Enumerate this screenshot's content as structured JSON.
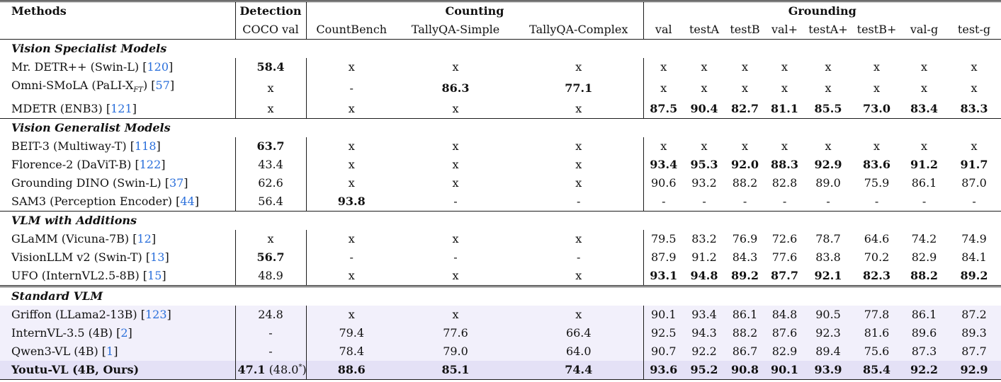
{
  "colors": {
    "citation_link": "#2a6fdb",
    "rule": "#1b1b1b",
    "text": "#111111",
    "shaded_row_bg": "#f2f0fb",
    "highlight_row_bg": "#e4e1f6"
  },
  "table": {
    "header": {
      "methods": "Methods",
      "groups": [
        {
          "label": "Detection",
          "cols": [
            "COCO val"
          ]
        },
        {
          "label": "Counting",
          "cols": [
            "CountBench",
            "TallyQA-Simple",
            "TallyQA-Complex"
          ]
        },
        {
          "label": "Grounding",
          "cols": [
            "val",
            "testA",
            "testB",
            "val+",
            "testA+",
            "testB+",
            "val-g",
            "test-g"
          ]
        }
      ]
    },
    "sections": [
      {
        "title": "Vision Specialist Models",
        "rule": "none",
        "shaded": false,
        "rows": [
          {
            "method": {
              "name": "Mr. DETR++ (Swin-L)",
              "cite": "120"
            },
            "cells": [
              {
                "v": "58.4",
                "b": true
              },
              {
                "v": "x"
              },
              {
                "v": "x"
              },
              {
                "v": "x"
              },
              {
                "v": "x"
              },
              {
                "v": "x"
              },
              {
                "v": "x"
              },
              {
                "v": "x"
              },
              {
                "v": "x"
              },
              {
                "v": "x"
              },
              {
                "v": "x"
              },
              {
                "v": "x"
              }
            ]
          },
          {
            "method": {
              "name": "Omni-SMoLA (PaLI-X",
              "sub": "FT",
              "after": ")",
              "cite": "57"
            },
            "cells": [
              {
                "v": "x"
              },
              {
                "v": "-"
              },
              {
                "v": "86.3",
                "b": true
              },
              {
                "v": "77.1",
                "b": true
              },
              {
                "v": "x"
              },
              {
                "v": "x"
              },
              {
                "v": "x"
              },
              {
                "v": "x"
              },
              {
                "v": "x"
              },
              {
                "v": "x"
              },
              {
                "v": "x"
              },
              {
                "v": "x"
              }
            ]
          },
          {
            "method": {
              "name": "MDETR (ENB3)",
              "cite": "121"
            },
            "cells": [
              {
                "v": "x"
              },
              {
                "v": "x"
              },
              {
                "v": "x"
              },
              {
                "v": "x"
              },
              {
                "v": "87.5",
                "b": true
              },
              {
                "v": "90.4",
                "b": true
              },
              {
                "v": "82.7",
                "b": true
              },
              {
                "v": "81.1",
                "b": true
              },
              {
                "v": "85.5",
                "b": true
              },
              {
                "v": "73.0",
                "b": true
              },
              {
                "v": "83.4",
                "b": true
              },
              {
                "v": "83.3",
                "b": true
              }
            ]
          }
        ]
      },
      {
        "title": "Vision Generalist Models",
        "rule": "single",
        "shaded": false,
        "rows": [
          {
            "method": {
              "name": "BEIT-3 (Multiway-T)",
              "cite": "118"
            },
            "cells": [
              {
                "v": "63.7",
                "b": true
              },
              {
                "v": "x"
              },
              {
                "v": "x"
              },
              {
                "v": "x"
              },
              {
                "v": "x"
              },
              {
                "v": "x"
              },
              {
                "v": "x"
              },
              {
                "v": "x"
              },
              {
                "v": "x"
              },
              {
                "v": "x"
              },
              {
                "v": "x"
              },
              {
                "v": "x"
              }
            ]
          },
          {
            "method": {
              "name": "Florence-2 (DaViT-B)",
              "cite": "122"
            },
            "cells": [
              {
                "v": "43.4"
              },
              {
                "v": "x"
              },
              {
                "v": "x"
              },
              {
                "v": "x"
              },
              {
                "v": "93.4",
                "b": true
              },
              {
                "v": "95.3",
                "b": true
              },
              {
                "v": "92.0",
                "b": true
              },
              {
                "v": "88.3",
                "b": true
              },
              {
                "v": "92.9",
                "b": true
              },
              {
                "v": "83.6",
                "b": true
              },
              {
                "v": "91.2",
                "b": true
              },
              {
                "v": "91.7",
                "b": true
              }
            ]
          },
          {
            "method": {
              "name": "Grounding DINO (Swin-L)",
              "cite": "37"
            },
            "cells": [
              {
                "v": "62.6"
              },
              {
                "v": "x"
              },
              {
                "v": "x"
              },
              {
                "v": "x"
              },
              {
                "v": "90.6"
              },
              {
                "v": "93.2"
              },
              {
                "v": "88.2"
              },
              {
                "v": "82.8"
              },
              {
                "v": "89.0"
              },
              {
                "v": "75.9"
              },
              {
                "v": "86.1"
              },
              {
                "v": "87.0"
              }
            ]
          },
          {
            "method": {
              "name": "SAM3 (Perception Encoder)",
              "cite": "44"
            },
            "cells": [
              {
                "v": "56.4"
              },
              {
                "v": "93.8",
                "b": true
              },
              {
                "v": "-"
              },
              {
                "v": "-"
              },
              {
                "v": "-"
              },
              {
                "v": "-"
              },
              {
                "v": "-"
              },
              {
                "v": "-"
              },
              {
                "v": "-"
              },
              {
                "v": "-"
              },
              {
                "v": "-"
              },
              {
                "v": "-"
              }
            ]
          }
        ]
      },
      {
        "title": "VLM with Additions",
        "rule": "single",
        "shaded": false,
        "rows": [
          {
            "method": {
              "name": "GLaMM (Vicuna-7B)",
              "cite": "12"
            },
            "cells": [
              {
                "v": "x"
              },
              {
                "v": "x"
              },
              {
                "v": "x"
              },
              {
                "v": "x"
              },
              {
                "v": "79.5"
              },
              {
                "v": "83.2"
              },
              {
                "v": "76.9"
              },
              {
                "v": "72.6"
              },
              {
                "v": "78.7"
              },
              {
                "v": "64.6"
              },
              {
                "v": "74.2"
              },
              {
                "v": "74.9"
              }
            ]
          },
          {
            "method": {
              "name": "VisionLLM v2 (Swin-T)",
              "cite": "13"
            },
            "cells": [
              {
                "v": "56.7",
                "b": true
              },
              {
                "v": "-"
              },
              {
                "v": "-"
              },
              {
                "v": "-"
              },
              {
                "v": "87.9"
              },
              {
                "v": "91.2"
              },
              {
                "v": "84.3"
              },
              {
                "v": "77.6"
              },
              {
                "v": "83.8"
              },
              {
                "v": "70.2"
              },
              {
                "v": "82.9"
              },
              {
                "v": "84.1"
              }
            ]
          },
          {
            "method": {
              "name": "UFO (InternVL2.5-8B)",
              "cite": "15"
            },
            "cells": [
              {
                "v": "48.9"
              },
              {
                "v": "x"
              },
              {
                "v": "x"
              },
              {
                "v": "x"
              },
              {
                "v": "93.1",
                "b": true
              },
              {
                "v": "94.8",
                "b": true
              },
              {
                "v": "89.2",
                "b": true
              },
              {
                "v": "87.7",
                "b": true
              },
              {
                "v": "92.1",
                "b": true
              },
              {
                "v": "82.3",
                "b": true
              },
              {
                "v": "88.2",
                "b": true
              },
              {
                "v": "89.2",
                "b": true
              }
            ]
          }
        ]
      },
      {
        "title": "Standard VLM",
        "rule": "double",
        "shaded": true,
        "rows": [
          {
            "method": {
              "name": "Griffon (LLama2-13B)",
              "cite": "123"
            },
            "cells": [
              {
                "v": "24.8"
              },
              {
                "v": "x"
              },
              {
                "v": "x"
              },
              {
                "v": "x"
              },
              {
                "v": "90.1"
              },
              {
                "v": "93.4"
              },
              {
                "v": "86.1"
              },
              {
                "v": "84.8"
              },
              {
                "v": "90.5"
              },
              {
                "v": "77.8"
              },
              {
                "v": "86.1"
              },
              {
                "v": "87.2"
              }
            ]
          },
          {
            "method": {
              "name": "InternVL-3.5 (4B)",
              "cite": "2"
            },
            "cells": [
              {
                "v": "-"
              },
              {
                "v": "79.4"
              },
              {
                "v": "77.6"
              },
              {
                "v": "66.4"
              },
              {
                "v": "92.5"
              },
              {
                "v": "94.3"
              },
              {
                "v": "88.2"
              },
              {
                "v": "87.6"
              },
              {
                "v": "92.3"
              },
              {
                "v": "81.6"
              },
              {
                "v": "89.6"
              },
              {
                "v": "89.3"
              }
            ]
          },
          {
            "method": {
              "name": "Qwen3-VL (4B)",
              "cite": "1"
            },
            "cells": [
              {
                "v": "-"
              },
              {
                "v": "78.4"
              },
              {
                "v": "79.0"
              },
              {
                "v": "64.0"
              },
              {
                "v": "90.7"
              },
              {
                "v": "92.2"
              },
              {
                "v": "86.7"
              },
              {
                "v": "82.9"
              },
              {
                "v": "89.4"
              },
              {
                "v": "75.6"
              },
              {
                "v": "87.3"
              },
              {
                "v": "87.7"
              }
            ]
          },
          {
            "method": {
              "name": "Youtu-VL (4B, Ours)",
              "bold": true
            },
            "highlight": true,
            "cells": [
              {
                "v": "47.1",
                "b": true,
                "note": "(48.0*)"
              },
              {
                "v": "88.6",
                "b": true
              },
              {
                "v": "85.1",
                "b": true
              },
              {
                "v": "74.4",
                "b": true
              },
              {
                "v": "93.6",
                "b": true
              },
              {
                "v": "95.2",
                "b": true
              },
              {
                "v": "90.8",
                "b": true
              },
              {
                "v": "90.1",
                "b": true
              },
              {
                "v": "93.9",
                "b": true
              },
              {
                "v": "85.4",
                "b": true
              },
              {
                "v": "92.2",
                "b": true
              },
              {
                "v": "92.9",
                "b": true
              }
            ]
          }
        ]
      }
    ]
  }
}
